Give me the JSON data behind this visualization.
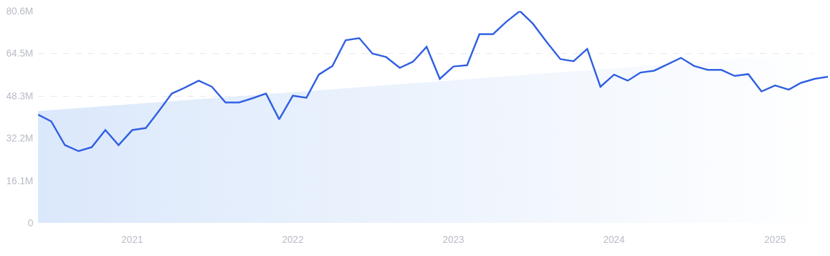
{
  "chart_data": {
    "type": "line",
    "x": [
      "2020-06",
      "2020-07",
      "2020-08",
      "2020-09",
      "2020-10",
      "2020-11",
      "2020-12",
      "2021-01",
      "2021-02",
      "2021-03",
      "2021-04",
      "2021-05",
      "2021-06",
      "2021-07",
      "2021-08",
      "2021-09",
      "2021-10",
      "2021-11",
      "2021-12",
      "2022-01",
      "2022-02",
      "2022-03",
      "2022-04",
      "2022-05",
      "2022-06",
      "2022-07",
      "2022-08",
      "2022-09",
      "2022-10",
      "2022-11",
      "2022-12",
      "2023-01",
      "2023-02",
      "2023-03",
      "2023-04",
      "2023-05",
      "2023-06",
      "2023-07",
      "2023-08",
      "2023-09",
      "2023-10",
      "2023-11",
      "2023-12",
      "2024-01",
      "2024-02",
      "2024-03",
      "2024-04",
      "2024-05",
      "2024-06",
      "2024-07",
      "2024-08",
      "2024-09",
      "2024-10",
      "2024-11",
      "2024-12",
      "2025-01",
      "2025-02",
      "2025-03",
      "2025-04",
      "2025-05"
    ],
    "series": [
      {
        "type": "area",
        "color": "#dbe8fb",
        "x": [
          "2020-06",
          "2025-05"
        ],
        "values": [
          42.5,
          64.9
        ]
      },
      {
        "color": "#2f5fe3",
        "values": [
          41.2,
          38.6,
          29.6,
          27.3,
          28.8,
          35.3,
          29.6,
          35.3,
          36.1,
          42.2,
          49.2,
          51.5,
          54.1,
          51.8,
          45.8,
          45.8,
          47.4,
          49.2,
          39.4,
          48.4,
          47.6,
          56.4,
          59.7,
          69.5,
          70.3,
          64.4,
          63.1,
          59.0,
          61.3,
          67.0,
          54.8,
          59.5,
          60.0,
          71.8,
          71.8,
          76.5,
          80.6,
          75.7,
          68.8,
          62.3,
          61.5,
          66.2,
          51.8,
          56.4,
          54.1,
          57.2,
          57.9,
          60.3,
          62.8,
          59.7,
          58.2,
          58.2,
          55.9,
          56.6,
          50.0,
          52.3,
          50.7,
          53.3,
          54.8,
          55.6
        ]
      }
    ],
    "xlim": [
      "2020-06",
      "2025-05"
    ],
    "xticks": [
      "2021",
      "2022",
      "2023",
      "2024",
      "2025"
    ],
    "ylim": [
      0,
      80.6
    ],
    "yticks": [
      0,
      {
        "value": 16.1,
        "label": "16.1M"
      },
      {
        "value": 32.2,
        "label": "32.2M"
      },
      {
        "value": 48.3,
        "label": "48.3M"
      },
      {
        "value": 64.5,
        "label": "64.5M"
      },
      {
        "value": 80.6,
        "label": "80.6M"
      }
    ],
    "grid": "y",
    "line_style": "solid",
    "marker": "none"
  }
}
